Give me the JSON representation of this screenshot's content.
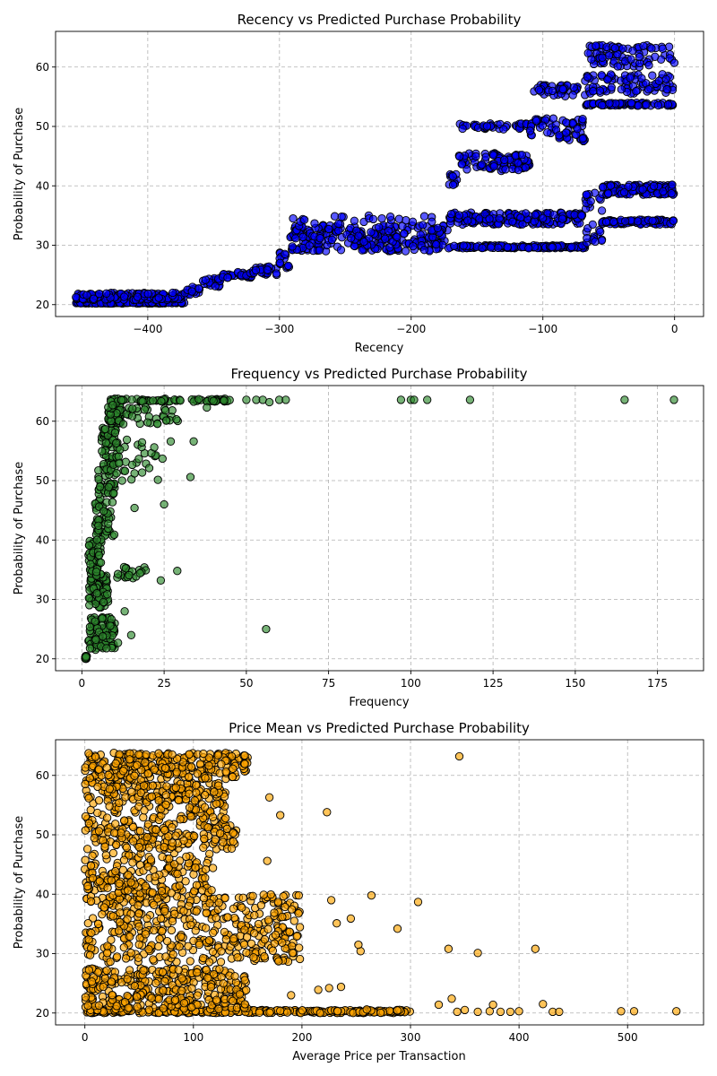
{
  "chart_data": [
    {
      "type": "scatter",
      "title": "Recency vs Predicted Purchase Probability",
      "xlabel": "Recency",
      "ylabel": "Probability of Purchase",
      "xlim": [
        -470,
        22
      ],
      "ylim": [
        18,
        66
      ],
      "xticks": [
        -400,
        -300,
        -200,
        -100,
        0
      ],
      "yticks": [
        20,
        30,
        40,
        50,
        60
      ],
      "grid": true,
      "point_color": "#0000ff",
      "edge_color": "#000000",
      "series": [
        {
          "segments": [
            {
              "x0": -455,
              "x1": -372,
              "y0": 20.2,
              "y1": 20.4,
              "n": 160
            },
            {
              "x0": -455,
              "x1": -372,
              "y0": 20.8,
              "y1": 22.0,
              "n": 120
            },
            {
              "x0": -372,
              "x1": -360,
              "y0": 21.5,
              "y1": 23.0,
              "n": 16
            },
            {
              "x0": -360,
              "x1": -345,
              "y0": 23.0,
              "y1": 24.5,
              "n": 20
            },
            {
              "x0": -345,
              "x1": -320,
              "y0": 24.5,
              "y1": 25.5,
              "n": 30
            },
            {
              "x0": -320,
              "x1": -300,
              "y0": 25.0,
              "y1": 26.5,
              "n": 24
            },
            {
              "x0": -300,
              "x1": -292,
              "y0": 26.0,
              "y1": 29.0,
              "n": 14
            },
            {
              "x0": -292,
              "x1": -172,
              "y0": 29.0,
              "y1": 33.5,
              "n": 260
            },
            {
              "x0": -172,
              "x1": -68,
              "y0": 29.5,
              "y1": 30.0,
              "n": 140
            },
            {
              "x0": -172,
              "x1": -68,
              "y0": 33.5,
              "y1": 35.5,
              "n": 160
            },
            {
              "x0": -68,
              "x1": -55,
              "y0": 30.0,
              "y1": 33.5,
              "n": 14
            },
            {
              "x0": -68,
              "x1": -55,
              "y0": 35.5,
              "y1": 39.0,
              "n": 14
            },
            {
              "x0": -55,
              "x1": 0,
              "y0": 33.5,
              "y1": 34.3,
              "n": 90
            },
            {
              "x0": -55,
              "x1": 0,
              "y0": 38.5,
              "y1": 40.2,
              "n": 110
            },
            {
              "x0": -172,
              "x1": -165,
              "y0": 40.0,
              "y1": 42.0,
              "n": 10
            },
            {
              "x0": -165,
              "x1": -110,
              "y0": 42.5,
              "y1": 45.5,
              "n": 90
            },
            {
              "x0": -165,
              "x1": -110,
              "y0": 49.5,
              "y1": 50.5,
              "n": 40
            },
            {
              "x0": -110,
              "x1": -68,
              "y0": 47.5,
              "y1": 51.5,
              "n": 60
            },
            {
              "x0": -110,
              "x1": -68,
              "y0": 55.0,
              "y1": 57.0,
              "n": 40
            },
            {
              "x0": -68,
              "x1": 0,
              "y0": 53.5,
              "y1": 54.0,
              "n": 70
            },
            {
              "x0": -68,
              "x1": 0,
              "y0": 55.5,
              "y1": 58.8,
              "n": 80
            },
            {
              "x0": -68,
              "x1": 0,
              "y0": 60.0,
              "y1": 63.8,
              "n": 80
            },
            {
              "x0": -290,
              "x1": -180,
              "y0": 33.5,
              "y1": 35.0,
              "n": 24
            }
          ]
        }
      ]
    },
    {
      "type": "scatter",
      "title": "Frequency vs Predicted Purchase Probability",
      "xlabel": "Frequency",
      "ylabel": "Probability of Purchase",
      "xlim": [
        -8,
        189
      ],
      "ylim": [
        18,
        66
      ],
      "xticks": [
        0,
        25,
        50,
        75,
        100,
        125,
        150,
        175
      ],
      "yticks": [
        20,
        30,
        40,
        50,
        60
      ],
      "grid": true,
      "point_color": "#2e8b2e",
      "edge_color": "#000000",
      "series": [
        {
          "segments": [
            {
              "x0": 1,
              "x1": 1.5,
              "y0": 20.0,
              "y1": 20.5,
              "n": 20
            },
            {
              "x0": 2,
              "x1": 10,
              "y0": 21.5,
              "y1": 27.0,
              "n": 90
            },
            {
              "x0": 2,
              "x1": 8,
              "y0": 28.5,
              "y1": 34.0,
              "n": 70
            },
            {
              "x0": 2,
              "x1": 6,
              "y0": 34.0,
              "y1": 40.0,
              "n": 50
            },
            {
              "x0": 4,
              "x1": 10,
              "y0": 40.0,
              "y1": 47.0,
              "n": 50
            },
            {
              "x0": 5,
              "x1": 10,
              "y0": 47.5,
              "y1": 54.0,
              "n": 50
            },
            {
              "x0": 6,
              "x1": 11,
              "y0": 54.0,
              "y1": 59.0,
              "n": 40
            },
            {
              "x0": 8,
              "x1": 12,
              "y0": 59.5,
              "y1": 63.8,
              "n": 60
            },
            {
              "x0": 12,
              "x1": 45,
              "y0": 63.3,
              "y1": 63.8,
              "n": 60
            },
            {
              "x0": 12,
              "x1": 30,
              "y0": 59.5,
              "y1": 62.5,
              "n": 30
            },
            {
              "x0": 10,
              "x1": 25,
              "y0": 49.5,
              "y1": 57.0,
              "n": 30
            },
            {
              "x0": 10,
              "x1": 20,
              "y0": 33.5,
              "y1": 35.5,
              "n": 20
            }
          ],
          "points": [
            [
              24,
              33.2
            ],
            [
              29,
              34.8
            ],
            [
              56,
              25.0
            ],
            [
              25,
              46.0
            ],
            [
              27,
              56.6
            ],
            [
              34,
              56.6
            ],
            [
              33,
              50.6
            ],
            [
              16,
              45.4
            ],
            [
              20,
              59.8
            ],
            [
              22,
              55.6
            ],
            [
              13,
              28.0
            ],
            [
              11,
              22.7
            ],
            [
              15,
              24.0
            ],
            [
              50,
              63.6
            ],
            [
              53,
              63.6
            ],
            [
              55,
              63.6
            ],
            [
              57,
              63.2
            ],
            [
              60,
              63.6
            ],
            [
              62,
              63.6
            ],
            [
              97,
              63.6
            ],
            [
              100,
              63.6
            ],
            [
              101,
              63.6
            ],
            [
              105,
              63.6
            ],
            [
              118,
              63.6
            ],
            [
              165,
              63.6
            ],
            [
              180,
              63.6
            ],
            [
              38,
              62.3
            ],
            [
              40,
              63.4
            ]
          ]
        }
      ]
    },
    {
      "type": "scatter",
      "title": "Price Mean vs Predicted Purchase Probability",
      "xlabel": "Average Price per Transaction",
      "ylabel": "Probability of Purchase",
      "xlim": [
        -27,
        570
      ],
      "ylim": [
        18,
        66
      ],
      "xticks": [
        0,
        100,
        200,
        300,
        400,
        500
      ],
      "yticks": [
        20,
        30,
        40,
        50,
        60
      ],
      "grid": true,
      "point_color": "#ffa500",
      "edge_color": "#000000",
      "series": [
        {
          "segments": [
            {
              "x0": 0,
              "x1": 300,
              "y0": 20.0,
              "y1": 20.5,
              "n": 260
            },
            {
              "x0": 0,
              "x1": 150,
              "y0": 20.5,
              "y1": 27.5,
              "n": 320
            },
            {
              "x0": 0,
              "x1": 200,
              "y0": 28.5,
              "y1": 40.0,
              "n": 420
            },
            {
              "x0": 0,
              "x1": 120,
              "y0": 40.0,
              "y1": 47.0,
              "n": 180
            },
            {
              "x0": 0,
              "x1": 140,
              "y0": 47.5,
              "y1": 54.0,
              "n": 200
            },
            {
              "x0": 0,
              "x1": 130,
              "y0": 54.0,
              "y1": 59.5,
              "n": 180
            },
            {
              "x0": 0,
              "x1": 150,
              "y0": 59.5,
              "y1": 63.8,
              "n": 240
            },
            {
              "x0": 200,
              "x1": 300,
              "y0": 20.0,
              "y1": 20.6,
              "n": 20
            }
          ],
          "points": [
            [
              345,
              63.2
            ],
            [
              223,
              53.8
            ],
            [
              264,
              39.8
            ],
            [
              307,
              38.7
            ],
            [
              288,
              34.2
            ],
            [
              335,
              30.8
            ],
            [
              362,
              30.1
            ],
            [
              415,
              30.8
            ],
            [
              254,
              30.4
            ],
            [
              227,
              39.0
            ],
            [
              232,
              35.1
            ],
            [
              245,
              35.9
            ],
            [
              252,
              31.5
            ],
            [
              168,
              45.6
            ],
            [
              180,
              53.3
            ],
            [
              170,
              56.3
            ],
            [
              197,
              39.8
            ],
            [
              178,
              38.7
            ],
            [
              326,
              21.4
            ],
            [
              338,
              22.4
            ],
            [
              343,
              20.2
            ],
            [
              350,
              20.5
            ],
            [
              362,
              20.2
            ],
            [
              373,
              20.3
            ],
            [
              376,
              21.4
            ],
            [
              383,
              20.2
            ],
            [
              392,
              20.2
            ],
            [
              400,
              20.3
            ],
            [
              422,
              21.5
            ],
            [
              431,
              20.2
            ],
            [
              437,
              20.2
            ],
            [
              494,
              20.3
            ],
            [
              506,
              20.3
            ],
            [
              545,
              20.3
            ],
            [
              225,
              24.2
            ],
            [
              236,
              24.4
            ],
            [
              190,
              23.0
            ],
            [
              215,
              23.9
            ]
          ]
        }
      ]
    }
  ]
}
